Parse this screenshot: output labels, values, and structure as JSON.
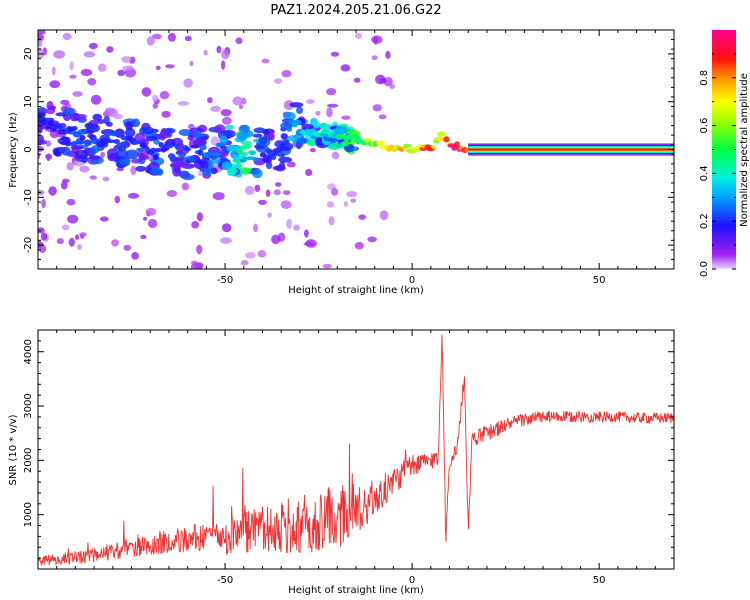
{
  "figure": {
    "title": "PAZ1.2024.205.21.06.G22"
  },
  "chart_data": [
    {
      "type": "heatmap",
      "panel": "spectrogram",
      "xlabel": "Height of straight line (km)",
      "ylabel": "Frequency (Hz)",
      "xlim": [
        -100,
        70
      ],
      "ylim": [
        -25,
        25
      ],
      "xticks": [
        -50,
        0,
        50
      ],
      "yticks": [
        -20,
        -10,
        0,
        10,
        20
      ],
      "colorbar": {
        "label": "Normalized spectral amplitude",
        "range": [
          0.0,
          1.0
        ],
        "ticks": [
          0.0,
          0.2,
          0.4,
          0.6,
          0.8
        ],
        "colormap": "gist_rainbow (purple→blue→cyan→green→yellow→red→magenta)"
      },
      "ridge": {
        "description": "dominant spectral peak along frequency vs height",
        "x": [
          -100,
          -90,
          -80,
          -70,
          -60,
          -50,
          -45,
          -40,
          -35,
          -32,
          -30,
          -25,
          -20,
          -15,
          -10,
          -5,
          0,
          5,
          8,
          10,
          15,
          20,
          30,
          40,
          50,
          60,
          70
        ],
        "y": [
          5,
          3,
          2,
          0,
          -1,
          0,
          0,
          -1,
          0,
          5,
          4,
          3.5,
          3,
          2,
          1,
          0.5,
          0.2,
          0.5,
          3,
          0.8,
          0.3,
          0.1,
          0,
          0,
          0,
          0,
          0
        ],
        "amplitude": [
          0.15,
          0.2,
          0.2,
          0.2,
          0.2,
          0.25,
          0.45,
          0.2,
          0.2,
          0.25,
          0.3,
          0.35,
          0.4,
          0.5,
          0.6,
          0.65,
          0.75,
          0.75,
          0.6,
          0.85,
          0.9,
          0.95,
          0.95,
          0.95,
          0.95,
          0.95,
          0.95
        ]
      }
    },
    {
      "type": "line",
      "panel": "snr",
      "xlabel": "Height of straight line (km)",
      "ylabel": "SNR (10 * v/v)",
      "xlim": [
        -100,
        70
      ],
      "ylim": [
        0,
        4400
      ],
      "xticks": [
        -50,
        0,
        50
      ],
      "yticks": [
        1000,
        2000,
        3000,
        4000
      ],
      "color": "#ee3333",
      "series": [
        {
          "x": [
            -100,
            -95,
            -90,
            -85,
            -80,
            -75,
            -70,
            -65,
            -60,
            -55,
            -50,
            -45,
            -40,
            -35,
            -30,
            -25,
            -20,
            -15,
            -10,
            -5,
            -2,
            0,
            5,
            7,
            8,
            9,
            10,
            12,
            14,
            15,
            16,
            20,
            25,
            30,
            35,
            40,
            45,
            50,
            55,
            60,
            65,
            70
          ],
          "y": [
            150,
            180,
            200,
            260,
            320,
            380,
            450,
            520,
            550,
            600,
            600,
            650,
            700,
            780,
            800,
            850,
            950,
            1100,
            1300,
            1600,
            1800,
            1900,
            2000,
            2050,
            4400,
            500,
            2000,
            2200,
            3550,
            700,
            2400,
            2500,
            2650,
            2750,
            2800,
            2800,
            2800,
            2800,
            2800,
            2780,
            2780,
            2780
          ]
        }
      ],
      "noise_envelope": {
        "x": [
          -100,
          -80,
          -60,
          -50,
          -40,
          -30,
          -20,
          -10,
          0,
          10,
          20,
          30,
          50,
          70
        ],
        "amplitude": [
          90,
          150,
          250,
          350,
          450,
          550,
          600,
          350,
          200,
          150,
          150,
          120,
          100,
          100
        ]
      }
    }
  ]
}
